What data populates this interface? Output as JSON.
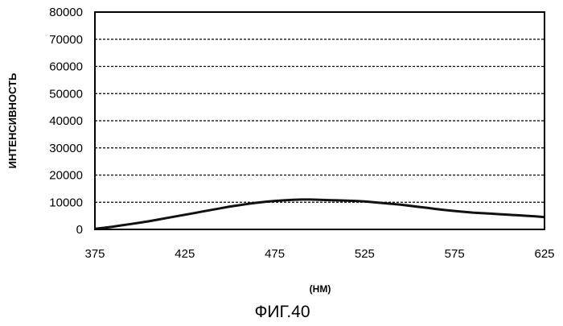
{
  "chart_data": {
    "type": "line",
    "title": "",
    "caption": "ФИГ.40",
    "xlabel": "(НМ)",
    "ylabel": "ИНТЕНСИВНОСТЬ",
    "xlim": [
      375,
      625
    ],
    "ylim": [
      0,
      80000
    ],
    "xticks": [
      "375",
      "425",
      "475",
      "525",
      "575",
      "625"
    ],
    "yticks": [
      "0",
      "10000",
      "20000",
      "30000",
      "40000",
      "50000",
      "60000",
      "70000",
      "80000"
    ],
    "grid": "horizontal-dashed",
    "series": [
      {
        "color": "#111111",
        "x": [
          375,
          380,
          385,
          390,
          395,
          400,
          405,
          410,
          415,
          420,
          425,
          430,
          435,
          440,
          445,
          450,
          455,
          460,
          465,
          470,
          475,
          480,
          485,
          490,
          495,
          500,
          505,
          510,
          515,
          520,
          525,
          530,
          535,
          540,
          545,
          550,
          555,
          560,
          565,
          570,
          575,
          580,
          585,
          590,
          595,
          600,
          605,
          610,
          615,
          620,
          625
        ],
        "y": [
          200,
          600,
          1000,
          1500,
          2000,
          2500,
          3000,
          3600,
          4200,
          4800,
          5400,
          6000,
          6600,
          7200,
          7800,
          8400,
          8900,
          9400,
          9800,
          10200,
          10500,
          10700,
          10900,
          11000,
          11000,
          10900,
          10800,
          10700,
          10600,
          10500,
          10300,
          10000,
          9700,
          9400,
          9100,
          8700,
          8300,
          7900,
          7500,
          7100,
          6800,
          6500,
          6200,
          6000,
          5800,
          5600,
          5400,
          5200,
          5000,
          4800,
          4500
        ]
      }
    ]
  }
}
